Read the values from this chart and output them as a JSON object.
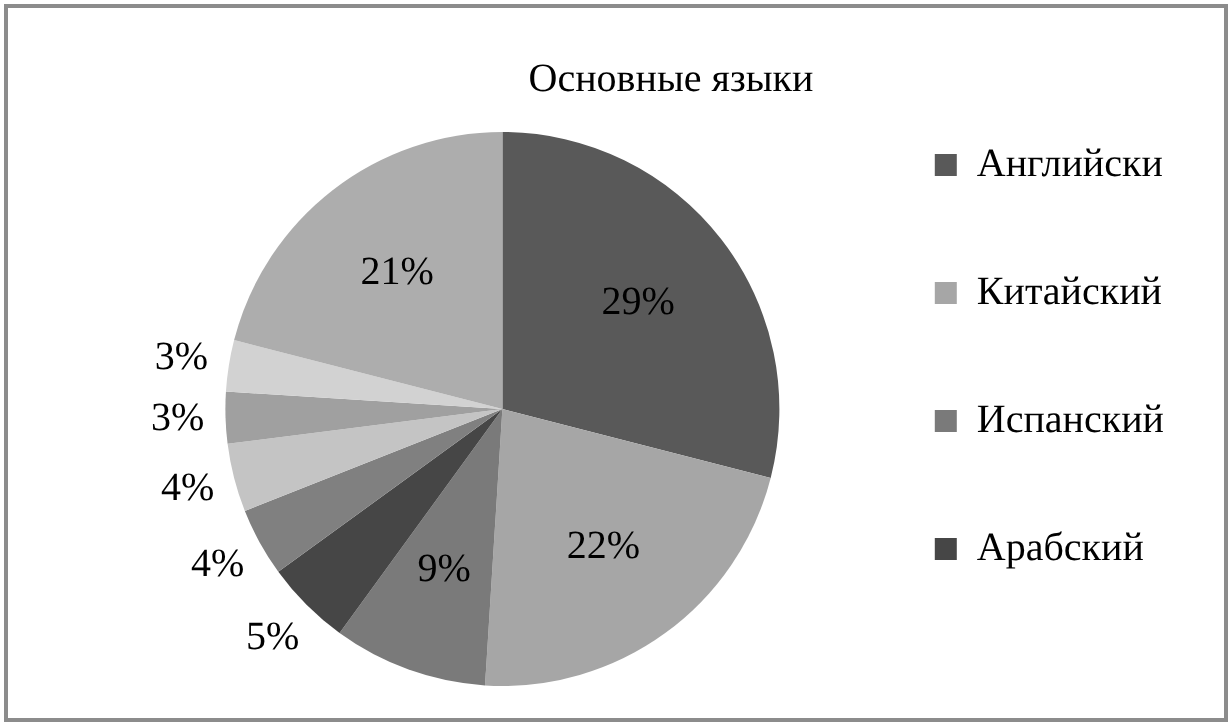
{
  "chart_data": {
    "type": "pie",
    "title": "Основные языки",
    "categories": [
      "Английски",
      "Китайский",
      "Испанский",
      "Арабский",
      null,
      null,
      null,
      null,
      null
    ],
    "values": [
      29,
      22,
      9,
      5,
      4,
      4,
      3,
      3,
      21
    ],
    "value_labels": [
      "29%",
      "22%",
      "9%",
      "5%",
      "4%",
      "4%",
      "3%",
      "3%",
      "21%"
    ],
    "colors": [
      "#595959",
      "#a6a6a6",
      "#7a7a7a",
      "#464646",
      "#808080",
      "#c4c4c4",
      "#a0a0a0",
      "#d2d2d2",
      "#adadad"
    ],
    "legend": "right"
  }
}
